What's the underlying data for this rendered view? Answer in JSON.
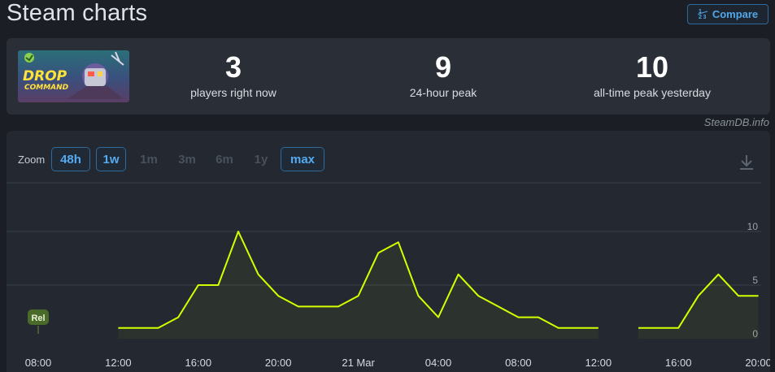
{
  "page": {
    "title": "Steam charts",
    "compare_label": "Compare",
    "compare_icon": "1/2/3 fraction icon"
  },
  "stats": [
    {
      "value": "3",
      "label": "players right now"
    },
    {
      "value": "9",
      "label": "24-hour peak"
    },
    {
      "value": "10",
      "label": "all-time peak yesterday"
    }
  ],
  "game_thumb": {
    "logo_text": "DROP COMMANDER",
    "icon": "game-capsule-art"
  },
  "credit": "SteamDB.info",
  "zoom": {
    "label": "Zoom",
    "options": [
      {
        "label": "48h",
        "active": true
      },
      {
        "label": "1w",
        "active": true
      },
      {
        "label": "1m",
        "active": false
      },
      {
        "label": "3m",
        "active": false
      },
      {
        "label": "6m",
        "active": false
      },
      {
        "label": "1y",
        "active": false
      },
      {
        "label": "max",
        "active": true
      }
    ],
    "download_icon": "download-icon"
  },
  "chart_data": {
    "type": "line",
    "line_color": "#d4ff00",
    "ylim": [
      0,
      13
    ],
    "yticks": [
      0,
      5,
      10
    ],
    "x_ticks": [
      "08:00",
      "12:00",
      "16:00",
      "20:00",
      "21 Mar",
      "04:00",
      "08:00",
      "12:00",
      "16:00",
      "20:00"
    ],
    "x_tick_hours": [
      8,
      12,
      16,
      20,
      24,
      28,
      32,
      36,
      40,
      44
    ],
    "xlim_hours": [
      7,
      45
    ],
    "annotation": {
      "label": "Rel",
      "x_hour": 8
    },
    "series": [
      {
        "segments": [
          [
            [
              12,
              1
            ],
            [
              14,
              1
            ],
            [
              15,
              2
            ],
            [
              16,
              5
            ],
            [
              17,
              5
            ],
            [
              18,
              10
            ],
            [
              19,
              6
            ],
            [
              20,
              4
            ],
            [
              21,
              3
            ],
            [
              22,
              3
            ],
            [
              23,
              3
            ],
            [
              24,
              4
            ],
            [
              25,
              8
            ],
            [
              26,
              9
            ],
            [
              27,
              4
            ],
            [
              28,
              2
            ],
            [
              29,
              6
            ],
            [
              30,
              4
            ],
            [
              31,
              3
            ],
            [
              32,
              2
            ],
            [
              33,
              2
            ],
            [
              34,
              1
            ],
            [
              35,
              1
            ],
            [
              36,
              1
            ]
          ],
          [
            [
              38,
              1
            ],
            [
              40,
              1
            ],
            [
              41,
              4
            ],
            [
              42,
              6
            ],
            [
              43,
              4
            ],
            [
              44,
              4
            ]
          ]
        ]
      }
    ]
  }
}
